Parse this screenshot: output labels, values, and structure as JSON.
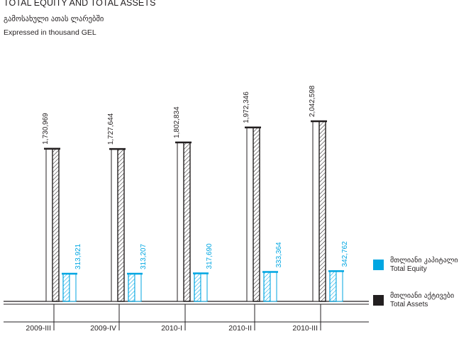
{
  "header": {
    "title": "TOTAL EQUITY AND TOTAL ASSETS",
    "subtitle_ka": "გამოსახული ათას ლარებში",
    "subtitle_en": "Expressed in thousand GEL"
  },
  "legend": {
    "equity": {
      "label_ka": "მთლიანი კაპიტალი",
      "label_en": "Total Equity",
      "color": "#00a6e2"
    },
    "assets": {
      "label_ka": "მთლიანი აქტივები",
      "label_en": "Total Assets",
      "color": "#231f20"
    }
  },
  "chart_data": {
    "type": "bar",
    "title": "TOTAL EQUITY AND TOTAL ASSETS",
    "categories": [
      "2009-III",
      "2009-IV",
      "2010-I",
      "2010-II",
      "2010-III"
    ],
    "series": [
      {
        "name": "Total Assets",
        "values": [
          1730969,
          1727644,
          1802834,
          1972346,
          2042598
        ],
        "labels": [
          "1,730,969",
          "1,727,644",
          "1,802,834",
          "1,972,346",
          "2,042,598"
        ],
        "color": "#231f20"
      },
      {
        "name": "Total Equity",
        "values": [
          313921,
          313207,
          317690,
          333364,
          342762
        ],
        "labels": [
          "313,921",
          "313,207",
          "317,690",
          "333,364",
          "342,762"
        ],
        "color": "#00a6e2"
      }
    ],
    "grid": false,
    "legend_position": "bottom-right"
  }
}
